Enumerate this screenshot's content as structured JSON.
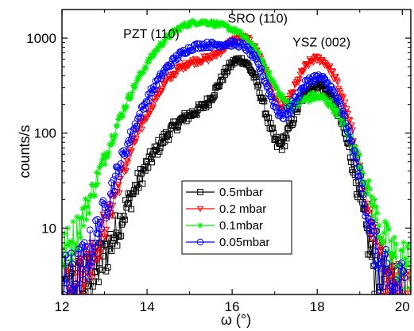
{
  "chart_data": {
    "type": "scatter",
    "title": "",
    "xlabel": "ω (°)",
    "ylabel": "counts/s",
    "xlim": [
      12,
      20.2
    ],
    "ylim": [
      2,
      2000
    ],
    "yscale": "log",
    "x_ticks": [
      12,
      14,
      16,
      18,
      20
    ],
    "x_tick_labels": [
      "12",
      "14",
      "16",
      "18",
      "20"
    ],
    "y_ticks": [
      10,
      100,
      1000
    ],
    "y_tick_labels": [
      "10",
      "100",
      "1000"
    ],
    "grid": false,
    "legend_position": "bottom-center",
    "annotations": [
      {
        "text": "PZT (110)",
        "x": 14.1,
        "y": 1000
      },
      {
        "text": "SRO (110)",
        "x": 16.6,
        "y": 1450
      },
      {
        "text": "YSZ (002)",
        "x": 18.1,
        "y": 820
      }
    ],
    "series": [
      {
        "name": "0.5mbar",
        "color": "#000000",
        "marker": "square",
        "peaks": [
          {
            "center": 15.4,
            "height": 170,
            "sigma": 0.85
          },
          {
            "center": 16.2,
            "height": 480,
            "sigma": 0.35
          },
          {
            "center": 18.0,
            "height": 320,
            "sigma": 0.42
          }
        ],
        "baseline": 2,
        "x_range": [
          12.0,
          19.9
        ]
      },
      {
        "name": "0.2 mbar",
        "color": "#ff0000",
        "marker": "triangle-down",
        "peaks": [
          {
            "center": 15.2,
            "height": 560,
            "sigma": 0.75
          },
          {
            "center": 16.3,
            "height": 800,
            "sigma": 0.4
          },
          {
            "center": 18.0,
            "height": 600,
            "sigma": 0.43
          }
        ],
        "baseline": 3,
        "x_range": [
          12.1,
          20.2
        ]
      },
      {
        "name": "0.1mbar",
        "color": "#00ee00",
        "marker": "star",
        "peaks": [
          {
            "center": 15.2,
            "height": 1450,
            "sigma": 0.85
          },
          {
            "center": 16.3,
            "height": 380,
            "sigma": 0.45
          },
          {
            "center": 18.0,
            "height": 230,
            "sigma": 0.55
          }
        ],
        "baseline": 4,
        "x_range": [
          12.0,
          20.2
        ]
      },
      {
        "name": "0.05mbar",
        "color": "#0000ff",
        "marker": "circle",
        "peaks": [
          {
            "center": 15.3,
            "height": 830,
            "sigma": 0.8
          },
          {
            "center": 16.3,
            "height": 420,
            "sigma": 0.38
          },
          {
            "center": 18.0,
            "height": 380,
            "sigma": 0.45
          }
        ],
        "baseline": 2,
        "x_range": [
          12.0,
          20.1
        ]
      }
    ]
  }
}
